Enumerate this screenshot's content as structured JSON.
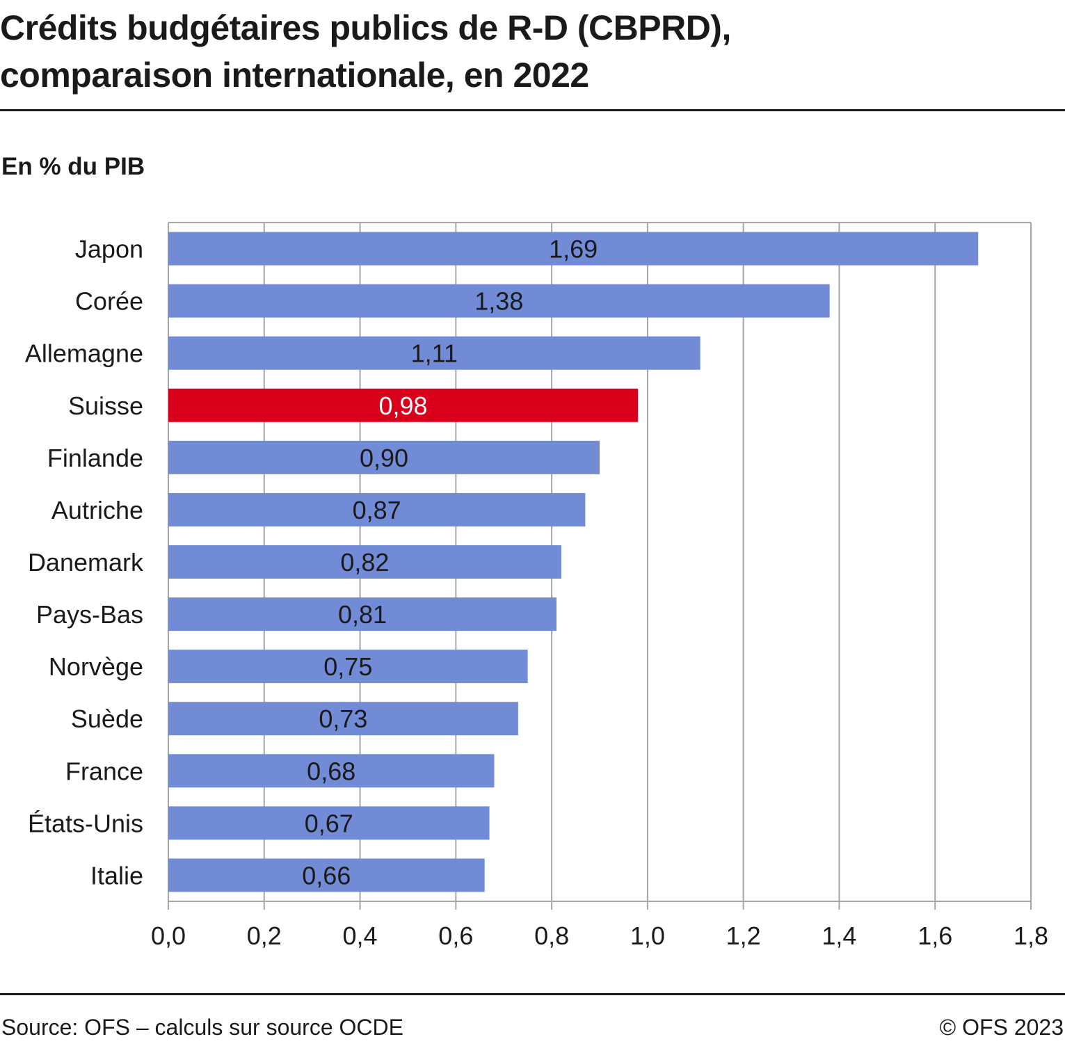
{
  "header": {
    "title_line1": "Crédits budgétaires publics de R-D (CBPRD),",
    "title_line2": "comparaison internationale, en 2022",
    "subtitle": "En % du PIB"
  },
  "footer": {
    "source": "Source: OFS – calculs sur source OCDE",
    "copyright": "© OFS 2023"
  },
  "colors": {
    "bar": "#728bd6",
    "highlight": "#d9001b",
    "grid": "#a6a6a6",
    "axis": "#a6a6a6",
    "text": "#1a1a1a",
    "highlight_label": "#ffffff"
  },
  "chart_data": {
    "type": "bar",
    "orientation": "horizontal",
    "title": "",
    "xlabel": "",
    "ylabel": "",
    "xlim": [
      0,
      1.8
    ],
    "xticks": [
      "0,0",
      "0,2",
      "0,4",
      "0,6",
      "0,8",
      "1,0",
      "1,2",
      "1,4",
      "1,6",
      "1,8"
    ],
    "grid": true,
    "categories": [
      "Japon",
      "Corée",
      "Allemagne",
      "Suisse",
      "Finlande",
      "Autriche",
      "Danemark",
      "Pays-Bas",
      "Norvège",
      "Suède",
      "France",
      "États-Unis",
      "Italie"
    ],
    "values": [
      1.69,
      1.38,
      1.11,
      0.98,
      0.9,
      0.87,
      0.82,
      0.81,
      0.75,
      0.73,
      0.68,
      0.67,
      0.66
    ],
    "value_labels": [
      "1,69",
      "1,38",
      "1,11",
      "0,98",
      "0,90",
      "0,87",
      "0,82",
      "0,81",
      "0,75",
      "0,73",
      "0,68",
      "0,67",
      "0,66"
    ],
    "highlight": "Suisse"
  }
}
